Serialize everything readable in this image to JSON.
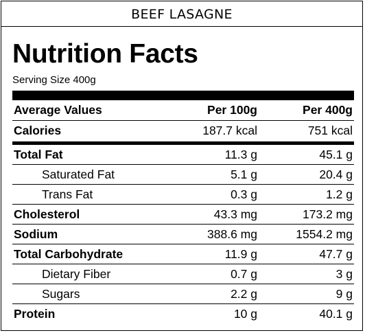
{
  "product_name": "BEEF LASAGNE",
  "title": "Nutrition Facts",
  "serving_size": "Serving Size 400g",
  "header": {
    "name": "Average Values",
    "per100": "Per 100g",
    "per400": "Per 400g"
  },
  "calories": {
    "name": "Calories",
    "per100": "187.7 kcal",
    "per400": "751 kcal"
  },
  "nutrients": [
    {
      "name": "Total Fat",
      "per100": "11.3 g",
      "per400": "45.1 g"
    },
    {
      "name": "Saturated Fat",
      "per100": "5.1 g",
      "per400": "20.4 g"
    },
    {
      "name": "Trans Fat",
      "per100": "0.3 g",
      "per400": "1.2 g"
    },
    {
      "name": "Cholesterol",
      "per100": "43.3 mg",
      "per400": "173.2 mg"
    },
    {
      "name": "Sodium",
      "per100": "388.6 mg",
      "per400": "1554.2 mg"
    },
    {
      "name": "Total Carbohydrate",
      "per100": "11.9 g",
      "per400": "47.7 g"
    },
    {
      "name": "Dietary Fiber",
      "per100": "0.7 g",
      "per400": "3 g"
    },
    {
      "name": "Sugars",
      "per100": "2.2 g",
      "per400": "9 g"
    },
    {
      "name": "Protein",
      "per100": "10 g",
      "per400": "40.1 g"
    }
  ]
}
